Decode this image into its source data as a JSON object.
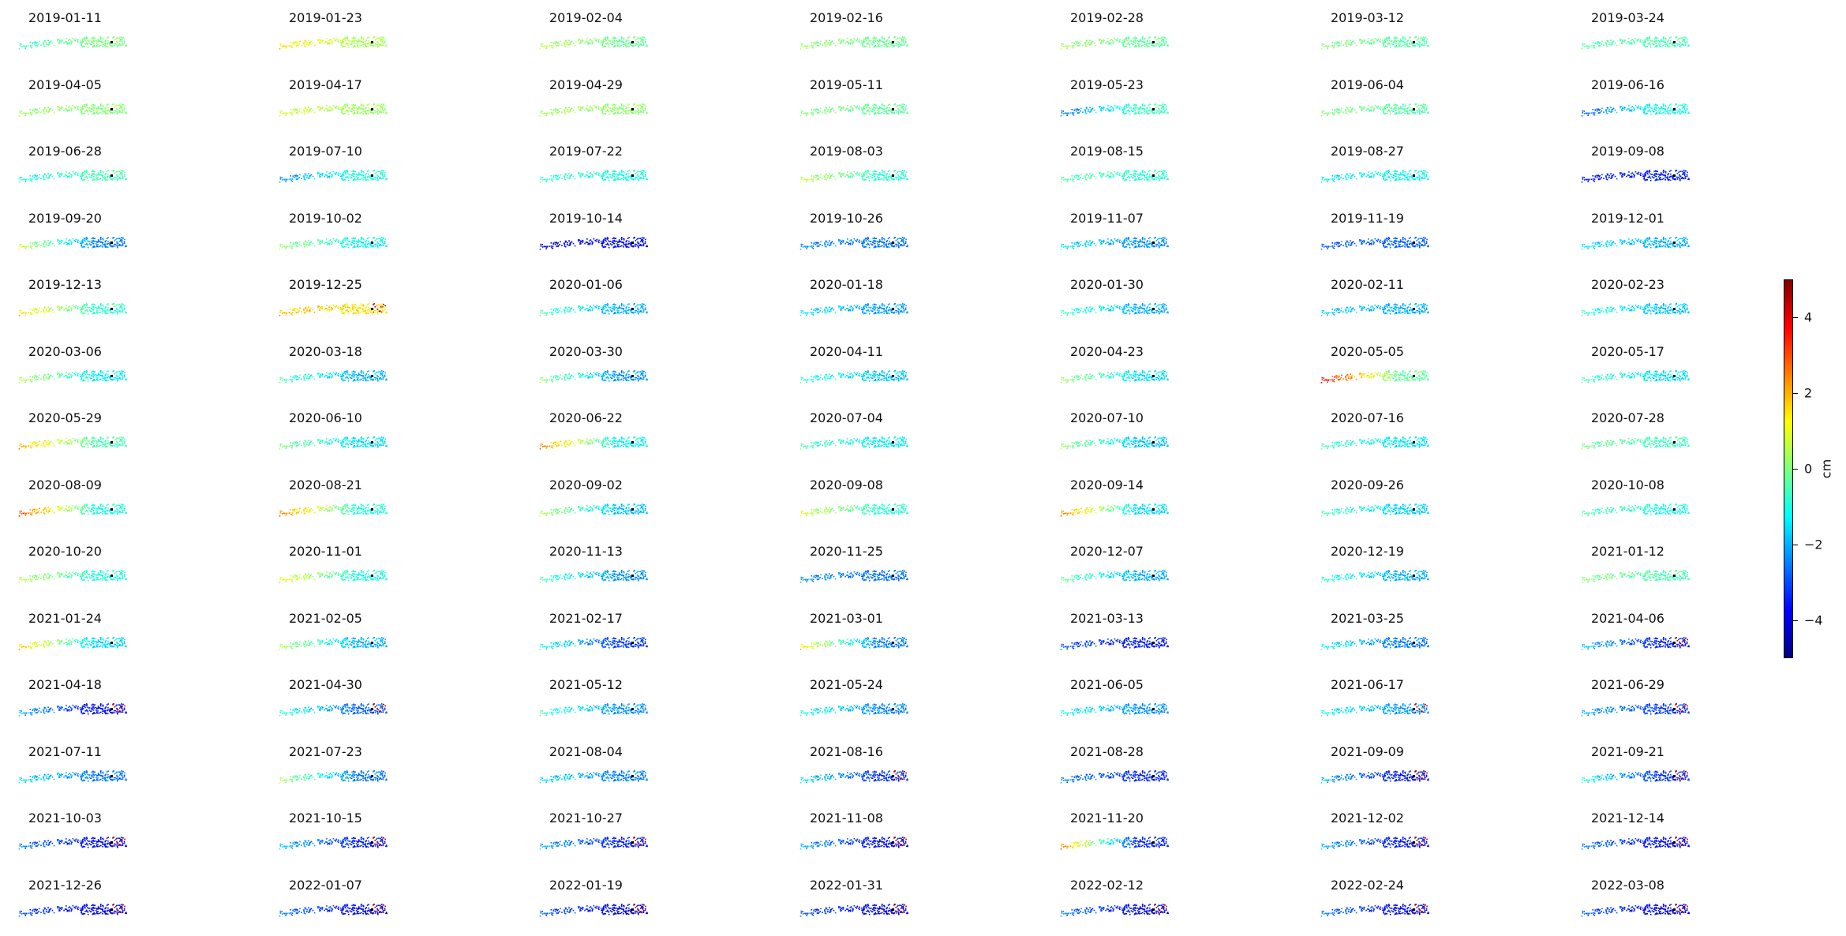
{
  "chart_data": {
    "type": "heatmap",
    "panel_titles": [
      "2019-01-11",
      "2019-01-23",
      "2019-02-04",
      "2019-02-16",
      "2019-02-28",
      "2019-03-12",
      "2019-03-24",
      "2019-04-05",
      "2019-04-17",
      "2019-04-29",
      "2019-05-11",
      "2019-05-23",
      "2019-06-04",
      "2019-06-16",
      "2019-06-28",
      "2019-07-10",
      "2019-07-22",
      "2019-08-03",
      "2019-08-15",
      "2019-08-27",
      "2019-09-08",
      "2019-09-20",
      "2019-10-02",
      "2019-10-14",
      "2019-10-26",
      "2019-11-07",
      "2019-11-19",
      "2019-12-01",
      "2019-12-13",
      "2019-12-25",
      "2020-01-06",
      "2020-01-18",
      "2020-01-30",
      "2020-02-11",
      "2020-02-23",
      "2020-03-06",
      "2020-03-18",
      "2020-03-30",
      "2020-04-11",
      "2020-04-23",
      "2020-05-05",
      "2020-05-17",
      "2020-05-29",
      "2020-06-10",
      "2020-06-22",
      "2020-07-04",
      "2020-07-10",
      "2020-07-16",
      "2020-07-28",
      "2020-08-09",
      "2020-08-21",
      "2020-09-02",
      "2020-09-08",
      "2020-09-14",
      "2020-09-26",
      "2020-10-08",
      "2020-10-20",
      "2020-11-01",
      "2020-11-13",
      "2020-11-25",
      "2020-12-07",
      "2020-12-19",
      "2021-01-12",
      "2021-01-24",
      "2021-02-05",
      "2021-02-17",
      "2021-03-01",
      "2021-03-13",
      "2021-03-25",
      "2021-04-06",
      "2021-04-18",
      "2021-04-30",
      "2021-05-12",
      "2021-05-24",
      "2021-06-05",
      "2021-06-17",
      "2021-06-29",
      "2021-07-11",
      "2021-07-23",
      "2021-08-04",
      "2021-08-16",
      "2021-08-28",
      "2021-09-09",
      "2021-09-21",
      "2021-10-03",
      "2021-10-15",
      "2021-10-27",
      "2021-11-08",
      "2021-11-20",
      "2021-12-02",
      "2021-12-14",
      "2021-12-26",
      "2022-01-07",
      "2022-01-19",
      "2022-01-31",
      "2022-02-12",
      "2022-02-24",
      "2022-03-08"
    ],
    "panel_mean_cm": [
      -0.5,
      0.3,
      -0.2,
      -0.3,
      -0.2,
      -0.3,
      -0.4,
      -0.3,
      0.1,
      -0.2,
      -0.4,
      -1.5,
      -0.5,
      -1.8,
      -0.9,
      -1.3,
      -1.1,
      -0.9,
      -0.8,
      -1.2,
      -3.0,
      -2.0,
      -1.2,
      -3.5,
      -2.3,
      -2.0,
      -2.6,
      -1.9,
      -0.6,
      1.2,
      -1.8,
      -2.0,
      -1.8,
      -2.0,
      -1.6,
      -1.0,
      -1.7,
      -2.0,
      -1.6,
      -1.2,
      0.5,
      -1.3,
      -0.4,
      -1.4,
      -1.0,
      -1.2,
      -1.5,
      -1.3,
      -0.9,
      -0.4,
      -1.0,
      -1.4,
      -1.0,
      -1.6,
      -1.5,
      -1.2,
      -1.0,
      -1.1,
      -2.1,
      -2.5,
      -1.8,
      -1.9,
      -0.8,
      -1.2,
      -1.6,
      -2.8,
      -2.0,
      -3.3,
      -2.2,
      -3.0,
      -3.2,
      -2.5,
      -2.0,
      -2.2,
      -2.1,
      -2.0,
      -2.8,
      -2.4,
      -2.1,
      -2.3,
      -2.9,
      -3.0,
      -3.2,
      -3.0,
      -3.4,
      -3.0,
      -3.1,
      -3.3,
      -2.6,
      -3.2,
      -3.3,
      -3.5,
      -3.4,
      -3.6,
      -3.5,
      -3.4,
      -3.3,
      -3.6
    ],
    "panel_west_cm": [
      -0.8,
      1.5,
      0.5,
      0.2,
      0.3,
      0.0,
      -0.5,
      0.2,
      0.8,
      0.3,
      0.0,
      -2.8,
      0.0,
      -3.0,
      -1.2,
      -2.5,
      -0.8,
      0.6,
      -0.5,
      -1.5,
      -3.8,
      0.8,
      0.2,
      -4.2,
      -2.5,
      -1.5,
      -3.0,
      -1.5,
      1.5,
      1.8,
      -0.5,
      -1.5,
      -0.6,
      -1.8,
      -0.8,
      0.5,
      -0.5,
      0.2,
      -0.8,
      0.3,
      3.8,
      -0.6,
      2.0,
      0.0,
      2.5,
      -0.5,
      0.2,
      -0.6,
      -0.2,
      3.0,
      2.5,
      0.5,
      0.8,
      2.5,
      -0.5,
      -0.5,
      0.5,
      1.2,
      -0.5,
      -2.5,
      -0.2,
      -0.8,
      0.0,
      1.8,
      0.5,
      -1.0,
      1.5,
      -3.0,
      -1.2,
      -1.8,
      -2.0,
      -0.8,
      -0.5,
      -1.0,
      -1.0,
      -1.2,
      -2.0,
      -1.5,
      0.5,
      -1.5,
      -1.5,
      -2.5,
      -2.0,
      -1.0,
      -2.5,
      -1.8,
      -2.0,
      -2.0,
      2.5,
      -2.0,
      -2.5,
      -3.0,
      -2.5,
      -2.8,
      -3.0,
      -2.5,
      -2.5,
      -2.8
    ],
    "panel_east_cm": [
      0.0,
      0.4,
      -0.2,
      -0.2,
      -0.3,
      -0.4,
      -0.5,
      0.1,
      0.3,
      0.2,
      -0.3,
      -0.6,
      -0.4,
      -1.0,
      -0.5,
      -0.9,
      -1.0,
      -0.8,
      -0.8,
      -1.1,
      -3.5,
      -2.5,
      -1.2,
      -3.8,
      -2.6,
      -2.3,
      -2.8,
      -2.0,
      -0.8,
      1.5,
      -2.0,
      -2.2,
      -2.0,
      -2.0,
      -1.8,
      -1.3,
      -2.0,
      -2.3,
      -1.8,
      -1.5,
      -0.3,
      -1.5,
      -0.5,
      -1.5,
      -1.2,
      -1.3,
      -1.8,
      -1.4,
      -0.6,
      -1.0,
      -0.9,
      -1.8,
      -0.8,
      -1.5,
      -1.6,
      -1.0,
      -0.9,
      -1.0,
      -2.3,
      -2.6,
      -2.0,
      -2.0,
      -0.5,
      -1.6,
      -2.0,
      -3.2,
      -2.5,
      -3.6,
      -2.6,
      -3.5,
      -3.8,
      -2.8,
      -2.3,
      -2.4,
      -2.3,
      -2.2,
      -3.2,
      -2.6,
      -2.6,
      -2.5,
      -3.3,
      -3.4,
      -3.6,
      -3.3,
      -3.8,
      -3.5,
      -3.5,
      -3.8,
      -3.4,
      -3.6,
      -3.8,
      -4.0,
      -3.9,
      -4.0,
      -4.0,
      -3.9,
      -3.8,
      -4.0
    ],
    "panel_hot_east": [
      false,
      false,
      false,
      false,
      false,
      false,
      false,
      false,
      false,
      false,
      false,
      false,
      false,
      false,
      false,
      false,
      false,
      false,
      false,
      false,
      false,
      false,
      false,
      false,
      false,
      false,
      false,
      false,
      false,
      true,
      false,
      false,
      false,
      false,
      false,
      false,
      false,
      false,
      false,
      false,
      false,
      false,
      false,
      false,
      false,
      false,
      false,
      false,
      false,
      false,
      false,
      false,
      false,
      false,
      false,
      false,
      false,
      false,
      false,
      false,
      false,
      false,
      false,
      false,
      false,
      false,
      false,
      false,
      false,
      true,
      true,
      true,
      false,
      false,
      false,
      true,
      true,
      false,
      false,
      false,
      true,
      false,
      true,
      true,
      true,
      true,
      true,
      true,
      false,
      true,
      true,
      true,
      true,
      true,
      true,
      true,
      true,
      true
    ],
    "panel_count": 98,
    "columns": 7,
    "rows": 14,
    "colormap": "jet",
    "colormap_stops": [
      "#00007f",
      "#0000ff",
      "#007fff",
      "#00ffff",
      "#7fff7f",
      "#ffff00",
      "#ff7f00",
      "#ff0000",
      "#7f0000"
    ],
    "vmin": -5,
    "vmax": 5,
    "reference_marker_color": "#000000",
    "colorbar": {
      "ticks": [
        4,
        2,
        0,
        -2,
        -4
      ],
      "tick_labels": [
        "4",
        "2",
        "0",
        "−2",
        "−4"
      ],
      "label": "cm"
    },
    "axes_visible": false
  }
}
